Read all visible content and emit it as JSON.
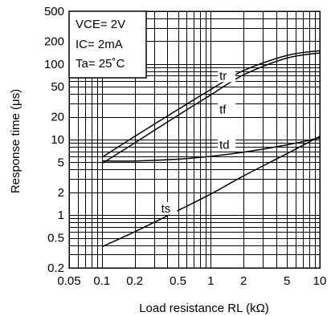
{
  "chart_data": {
    "type": "line",
    "xscale": "log",
    "yscale": "log",
    "xlim": [
      0.05,
      10
    ],
    "ylim": [
      0.2,
      500
    ],
    "x_ticks": [
      {
        "v": 0.05,
        "label": "0.05"
      },
      {
        "v": 0.1,
        "label": "0.1"
      },
      {
        "v": 0.2,
        "label": "0.2"
      },
      {
        "v": 0.5,
        "label": "0.5"
      },
      {
        "v": 1,
        "label": "1"
      },
      {
        "v": 2,
        "label": "2"
      },
      {
        "v": 5,
        "label": "5"
      },
      {
        "v": 10,
        "label": "10"
      }
    ],
    "y_ticks": [
      {
        "v": 0.2,
        "label": "0.2"
      },
      {
        "v": 0.5,
        "label": "0.5"
      },
      {
        "v": 1,
        "label": "1"
      },
      {
        "v": 2,
        "label": "2"
      },
      {
        "v": 5,
        "label": "5"
      },
      {
        "v": 10,
        "label": "10"
      },
      {
        "v": 20,
        "label": "20"
      },
      {
        "v": 50,
        "label": "50"
      },
      {
        "v": 100,
        "label": "100"
      },
      {
        "v": 200,
        "label": "200"
      },
      {
        "v": 500,
        "label": "500"
      }
    ],
    "xlabel": "Load resistance RL (kΩ)",
    "ylabel": "Response time (μs)",
    "grid": true,
    "conditions": [
      "VCE= 2V",
      "IC= 2mA",
      "Ta= 25˚C"
    ],
    "series": [
      {
        "name": "tr",
        "x": [
          0.1,
          0.2,
          0.5,
          1,
          2,
          5,
          10
        ],
        "y": [
          5.8,
          11,
          25,
          46,
          82,
          130,
          150
        ]
      },
      {
        "name": "tf",
        "x": [
          0.1,
          0.2,
          0.5,
          1,
          2,
          5,
          10
        ],
        "y": [
          4.8,
          9,
          21,
          39,
          72,
          120,
          140
        ]
      },
      {
        "name": "td",
        "x": [
          0.1,
          0.2,
          0.5,
          1,
          2,
          5,
          10
        ],
        "y": [
          5.2,
          5.2,
          5.5,
          6,
          6.8,
          8.5,
          10.5
        ]
      },
      {
        "name": "ts",
        "x": [
          0.1,
          0.2,
          0.5,
          1,
          2,
          5,
          10
        ],
        "y": [
          0.38,
          0.6,
          1.15,
          1.9,
          3.3,
          6.5,
          11
        ]
      }
    ]
  }
}
